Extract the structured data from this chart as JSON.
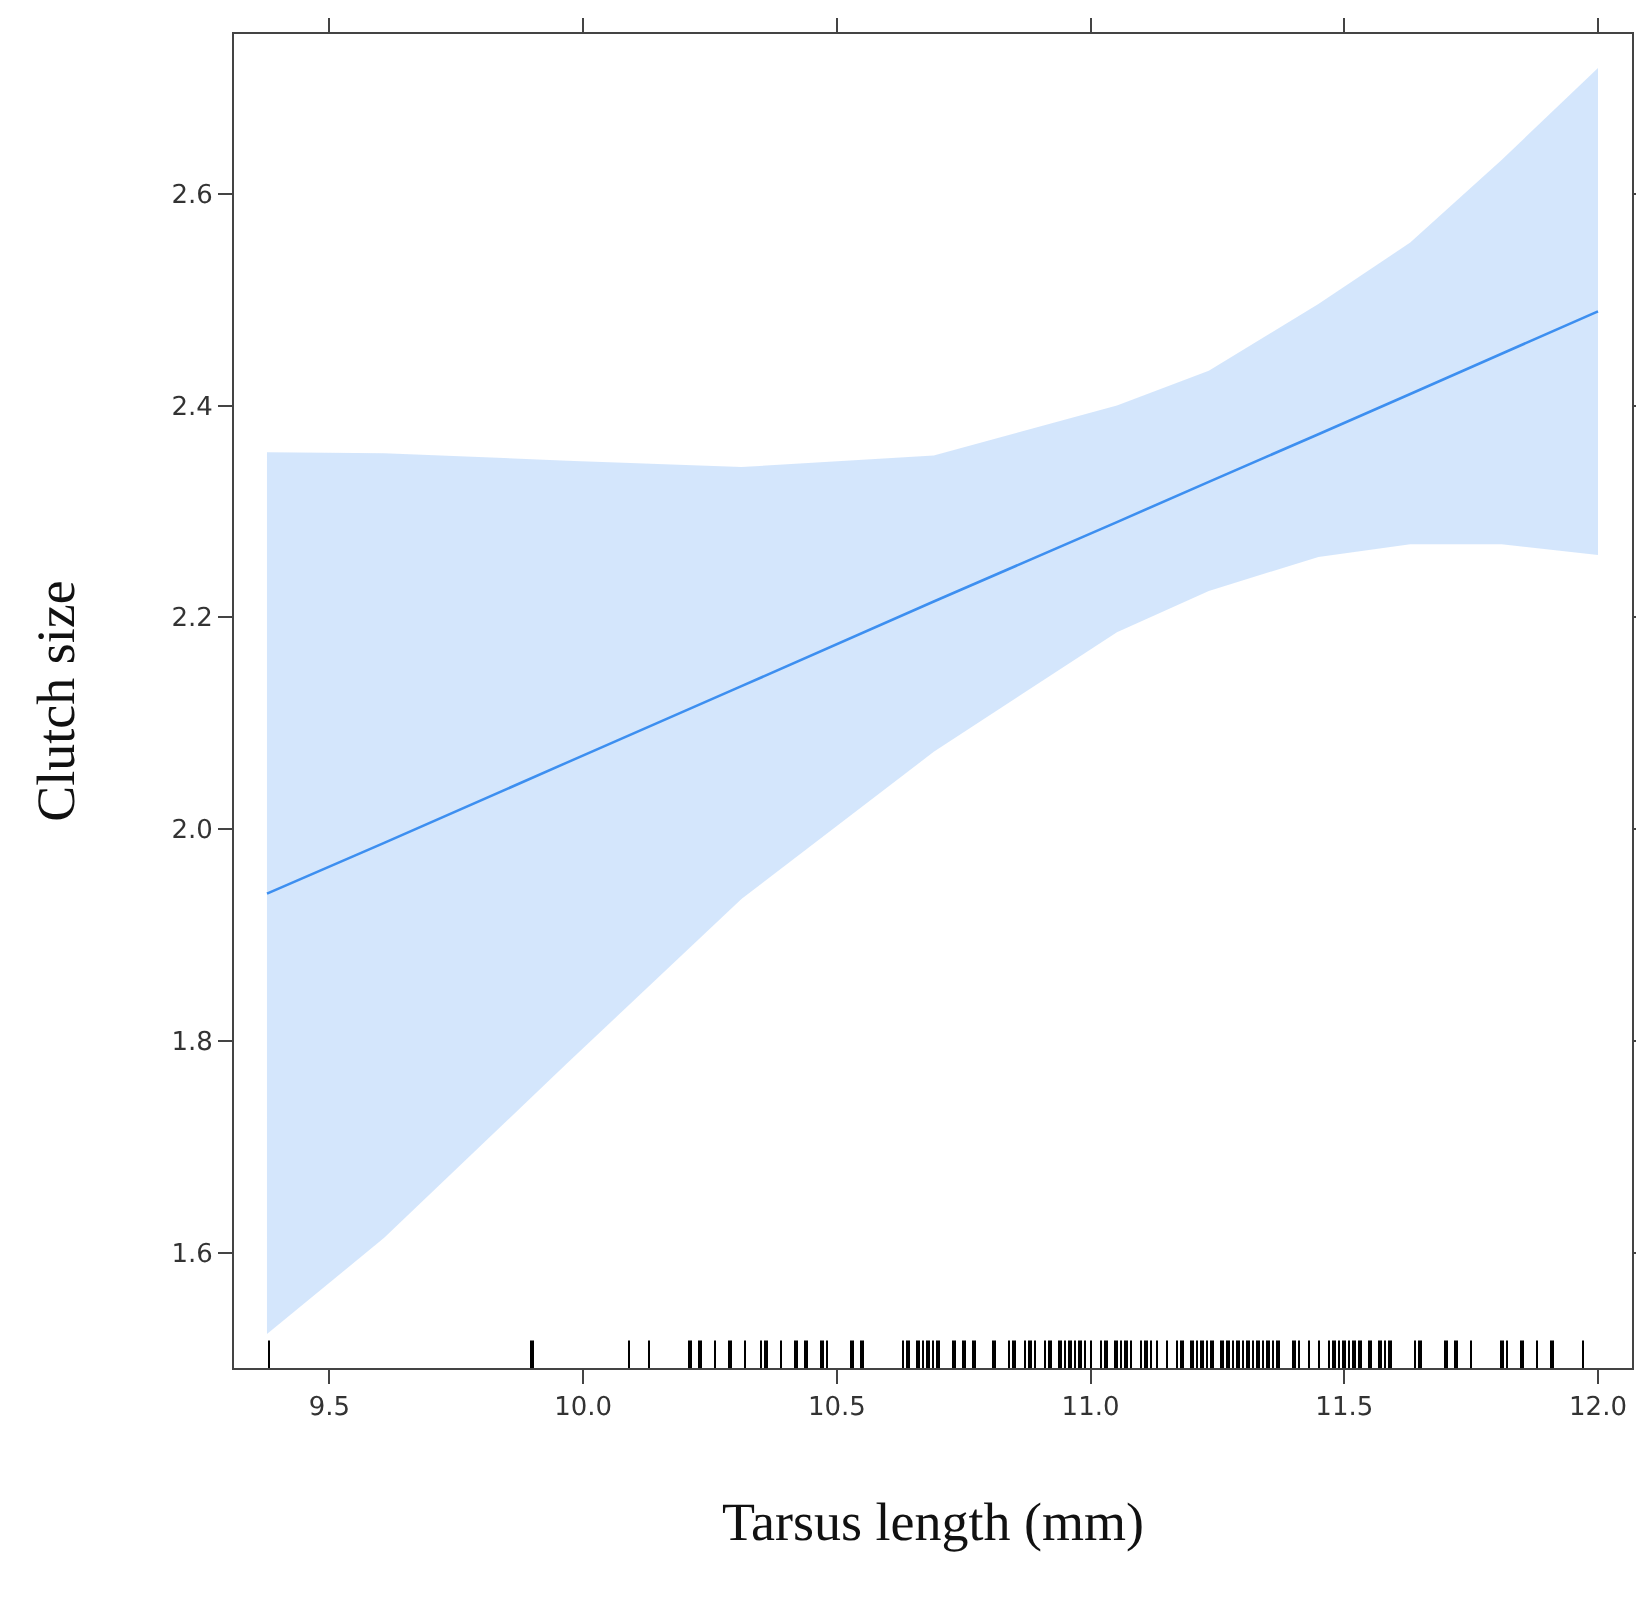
{
  "chart_data": {
    "type": "line",
    "xlabel": "Tarsus length (mm)",
    "ylabel": "Clutch size",
    "xlim": [
      9.312,
      12.067
    ],
    "ylim": [
      1.491,
      2.751
    ],
    "xticks": [
      9.5,
      {
        "value": 10.0,
        "label": "10.0"
      },
      10.5,
      {
        "value": 11.0,
        "label": "11.0"
      },
      11.5,
      {
        "value": 12.0,
        "label": "12.0"
      }
    ],
    "yticks": [
      1.6,
      1.8,
      {
        "value": 2.0,
        "label": "2.0"
      },
      2.2,
      2.4,
      2.6
    ],
    "marker": "none",
    "line_style": "solid",
    "series": [
      {
        "color": "#3d8ff0",
        "x": [
          9.377,
          9.608,
          9.969,
          10.312,
          10.691,
          11.052,
          11.233,
          11.449,
          11.63,
          11.81,
          12.0
        ],
        "values": [
          1.939,
          1.987,
          2.063,
          2.135,
          2.215,
          2.29,
          2.328,
          2.373,
          2.411,
          2.449,
          2.489
        ],
        "lower": [
          1.523,
          1.614,
          1.779,
          1.934,
          2.073,
          2.186,
          2.225,
          2.257,
          2.269,
          2.269,
          2.259
        ],
        "upper": [
          2.356,
          2.355,
          2.348,
          2.342,
          2.353,
          2.4,
          2.433,
          2.496,
          2.554,
          2.632,
          2.719
        ]
      },
      {
        "type": "bar",
        "color": "#000000",
        "x": [
          9.38,
          9.9,
          10.09,
          10.13,
          10.21,
          10.23,
          10.26,
          10.29,
          10.32,
          10.35,
          10.36,
          10.39,
          10.42,
          10.44,
          10.47,
          10.48,
          10.53,
          10.55,
          10.63,
          10.64,
          10.66,
          10.67,
          10.68,
          10.69,
          10.7,
          10.73,
          10.75,
          10.77,
          10.81,
          10.84,
          10.85,
          10.87,
          10.88,
          10.89,
          10.91,
          10.92,
          10.94,
          10.95,
          10.96,
          10.97,
          10.98,
          10.99,
          11.0,
          11.02,
          11.03,
          11.05,
          11.06,
          11.07,
          11.08,
          11.1,
          11.11,
          11.12,
          11.13,
          11.15,
          11.17,
          11.18,
          11.2,
          11.21,
          11.22,
          11.23,
          11.24,
          11.26,
          11.27,
          11.28,
          11.29,
          11.3,
          11.31,
          11.32,
          11.33,
          11.34,
          11.35,
          11.36,
          11.37,
          11.4,
          11.41,
          11.43,
          11.45,
          11.47,
          11.48,
          11.49,
          11.5,
          11.51,
          11.52,
          11.53,
          11.55,
          11.57,
          11.58,
          11.59,
          11.64,
          11.65,
          11.7,
          11.72,
          11.75,
          11.81,
          11.82,
          11.85,
          11.88,
          11.91,
          11.97
        ],
        "base": [
          1.491,
          1.491,
          1.491,
          1.491,
          1.491,
          1.491,
          1.491,
          1.491,
          1.491,
          1.491,
          1.491,
          1.491,
          1.491,
          1.491,
          1.491,
          1.491,
          1.491,
          1.491,
          1.491,
          1.491,
          1.491,
          1.491,
          1.491,
          1.491,
          1.491,
          1.491,
          1.491,
          1.491,
          1.491,
          1.491,
          1.491,
          1.491,
          1.491,
          1.491,
          1.491,
          1.491,
          1.491,
          1.491,
          1.491,
          1.491,
          1.491,
          1.491,
          1.491,
          1.491,
          1.491,
          1.491,
          1.491,
          1.491,
          1.491,
          1.491,
          1.491,
          1.491,
          1.491,
          1.491,
          1.491,
          1.491,
          1.491,
          1.491,
          1.491,
          1.491,
          1.491,
          1.491,
          1.491,
          1.491,
          1.491,
          1.491,
          1.491,
          1.491,
          1.491,
          1.491,
          1.491,
          1.491,
          1.491,
          1.491,
          1.491,
          1.491,
          1.491,
          1.491,
          1.491,
          1.491,
          1.491,
          1.491,
          1.491,
          1.491,
          1.491,
          1.491,
          1.491,
          1.491,
          1.491,
          1.491,
          1.491,
          1.491,
          1.491,
          1.491,
          1.491,
          1.491,
          1.491,
          1.491,
          1.491
        ],
        "values": [
          0.026,
          0.026,
          0.026,
          0.026,
          0.026,
          0.026,
          0.026,
          0.026,
          0.026,
          0.026,
          0.026,
          0.026,
          0.026,
          0.026,
          0.026,
          0.026,
          0.026,
          0.026,
          0.026,
          0.026,
          0.026,
          0.026,
          0.026,
          0.026,
          0.026,
          0.026,
          0.026,
          0.026,
          0.026,
          0.026,
          0.026,
          0.026,
          0.026,
          0.026,
          0.026,
          0.026,
          0.026,
          0.026,
          0.026,
          0.026,
          0.026,
          0.026,
          0.026,
          0.026,
          0.026,
          0.026,
          0.026,
          0.026,
          0.026,
          0.026,
          0.026,
          0.026,
          0.026,
          0.026,
          0.026,
          0.026,
          0.026,
          0.026,
          0.026,
          0.026,
          0.026,
          0.026,
          0.026,
          0.026,
          0.026,
          0.026,
          0.026,
          0.026,
          0.026,
          0.026,
          0.026,
          0.026,
          0.026,
          0.026,
          0.026,
          0.026,
          0.026,
          0.026,
          0.026,
          0.026,
          0.026,
          0.026,
          0.026,
          0.026,
          0.026,
          0.026,
          0.026,
          0.026,
          0.026,
          0.026,
          0.026,
          0.026,
          0.026,
          0.026,
          0.026,
          0.026,
          0.026,
          0.026,
          0.026
        ]
      }
    ]
  }
}
